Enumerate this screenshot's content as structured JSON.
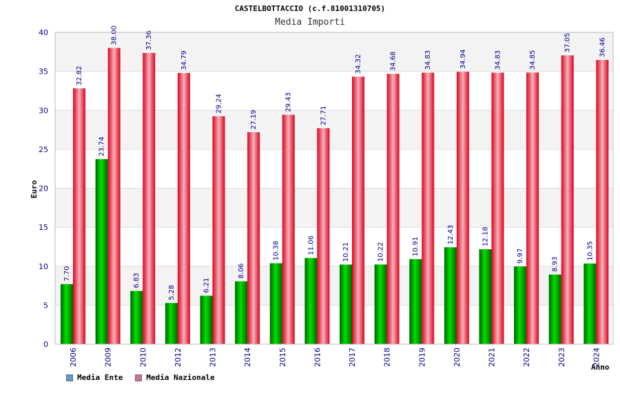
{
  "chart_data": {
    "type": "bar",
    "title": "CASTELBOTTACCIO (c.f.81001310705)",
    "subtitle": "Media Importi",
    "xlabel": "Anno",
    "ylabel": "Euro",
    "ylim": [
      0,
      40
    ],
    "yticks": [
      "0",
      "5",
      "10",
      "15",
      "20",
      "25",
      "30",
      "35",
      "40"
    ],
    "grid": true,
    "legend_position": "bottom-left",
    "categories": [
      "2006",
      "2009",
      "2010",
      "2012",
      "2013",
      "2014",
      "2015",
      "2016",
      "2017",
      "2018",
      "2019",
      "2020",
      "2021",
      "2022",
      "2023",
      "2024"
    ],
    "series": [
      {
        "name": "Media Ente",
        "color": "#00b800",
        "legend_color": "#5b9bd5",
        "values": [
          7.7,
          23.74,
          6.83,
          5.28,
          6.21,
          8.06,
          10.38,
          11.06,
          10.21,
          10.22,
          10.91,
          12.43,
          12.18,
          9.97,
          8.93,
          10.35
        ],
        "labels": [
          "7.70",
          "23.74",
          "6.83",
          "5.28",
          "6.21",
          "8.06",
          "10.38",
          "11.06",
          "10.21",
          "10.22",
          "10.91",
          "12.43",
          "12.18",
          "9.97",
          "8.93",
          "10.35"
        ]
      },
      {
        "name": "Media Nazionale",
        "color": "#e8001c",
        "legend_color": "#d66fa0",
        "values": [
          32.82,
          38.0,
          37.36,
          34.79,
          29.24,
          27.19,
          29.43,
          27.71,
          34.32,
          34.68,
          34.83,
          34.94,
          34.83,
          34.85,
          37.05,
          36.46
        ],
        "labels": [
          "32.82",
          "38.00",
          "37.36",
          "34.79",
          "29.24",
          "27.19",
          "29.43",
          "27.71",
          "34.32",
          "34.68",
          "34.83",
          "34.94",
          "34.83",
          "34.85",
          "37.05",
          "36.46"
        ]
      }
    ]
  }
}
